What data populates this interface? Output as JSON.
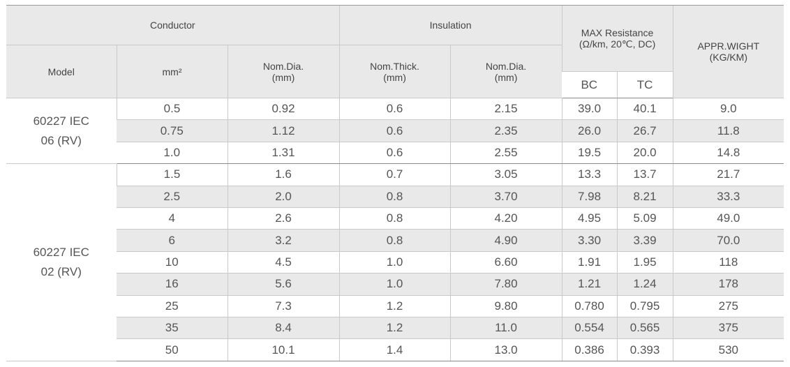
{
  "header": {
    "conductor": "Conductor",
    "insulation": "Insulation",
    "max_resistance_line1": "MAX Resistance",
    "max_resistance_line2": "(Ω/km, 20℃, DC)",
    "weight_line1": "APPR.WIGHT",
    "weight_line2": "(KG/KM)",
    "model": "Model",
    "mm2": "mm²",
    "cond_dia_line1": "Nom.Dia.",
    "cond_dia_line2": "(mm)",
    "ins_thick_line1": "Nom.Thick.",
    "ins_thick_line2": "(mm)",
    "ins_dia_line1": "Nom.Dia.",
    "ins_dia_line2": "(mm)",
    "bc": "BC",
    "tc": "TC"
  },
  "groups": [
    {
      "model_line1": "60227 IEC",
      "model_line2": "06 (RV)",
      "rows": [
        [
          "0.5",
          "0.92",
          "0.6",
          "2.15",
          "39.0",
          "40.1",
          "9.0"
        ],
        [
          "0.75",
          "1.12",
          "0.6",
          "2.35",
          "26.0",
          "26.7",
          "11.8"
        ],
        [
          "1.0",
          "1.31",
          "0.6",
          "2.55",
          "19.5",
          "20.0",
          "14.8"
        ]
      ]
    },
    {
      "model_line1": "60227 IEC",
      "model_line2": "02 (RV)",
      "rows": [
        [
          "1.5",
          "1.6",
          "0.7",
          "3.05",
          "13.3",
          "13.7",
          "21.7"
        ],
        [
          "2.5",
          "2.0",
          "0.8",
          "3.70",
          "7.98",
          "8.21",
          "33.3"
        ],
        [
          "4",
          "2.6",
          "0.8",
          "4.20",
          "4.95",
          "5.09",
          "49.0"
        ],
        [
          "6",
          "3.2",
          "0.8",
          "4.90",
          "3.30",
          "3.39",
          "70.0"
        ],
        [
          "10",
          "4.5",
          "1.0",
          "6.60",
          "1.91",
          "1.95",
          "118"
        ],
        [
          "16",
          "5.6",
          "1.0",
          "7.80",
          "1.21",
          "1.24",
          "178"
        ],
        [
          "25",
          "7.3",
          "1.2",
          "9.80",
          "0.780",
          "0.795",
          "275"
        ],
        [
          "35",
          "8.4",
          "1.2",
          "11.0",
          "0.554",
          "0.565",
          "375"
        ],
        [
          "50",
          "10.1",
          "1.4",
          "13.0",
          "0.386",
          "0.393",
          "530"
        ]
      ]
    }
  ]
}
